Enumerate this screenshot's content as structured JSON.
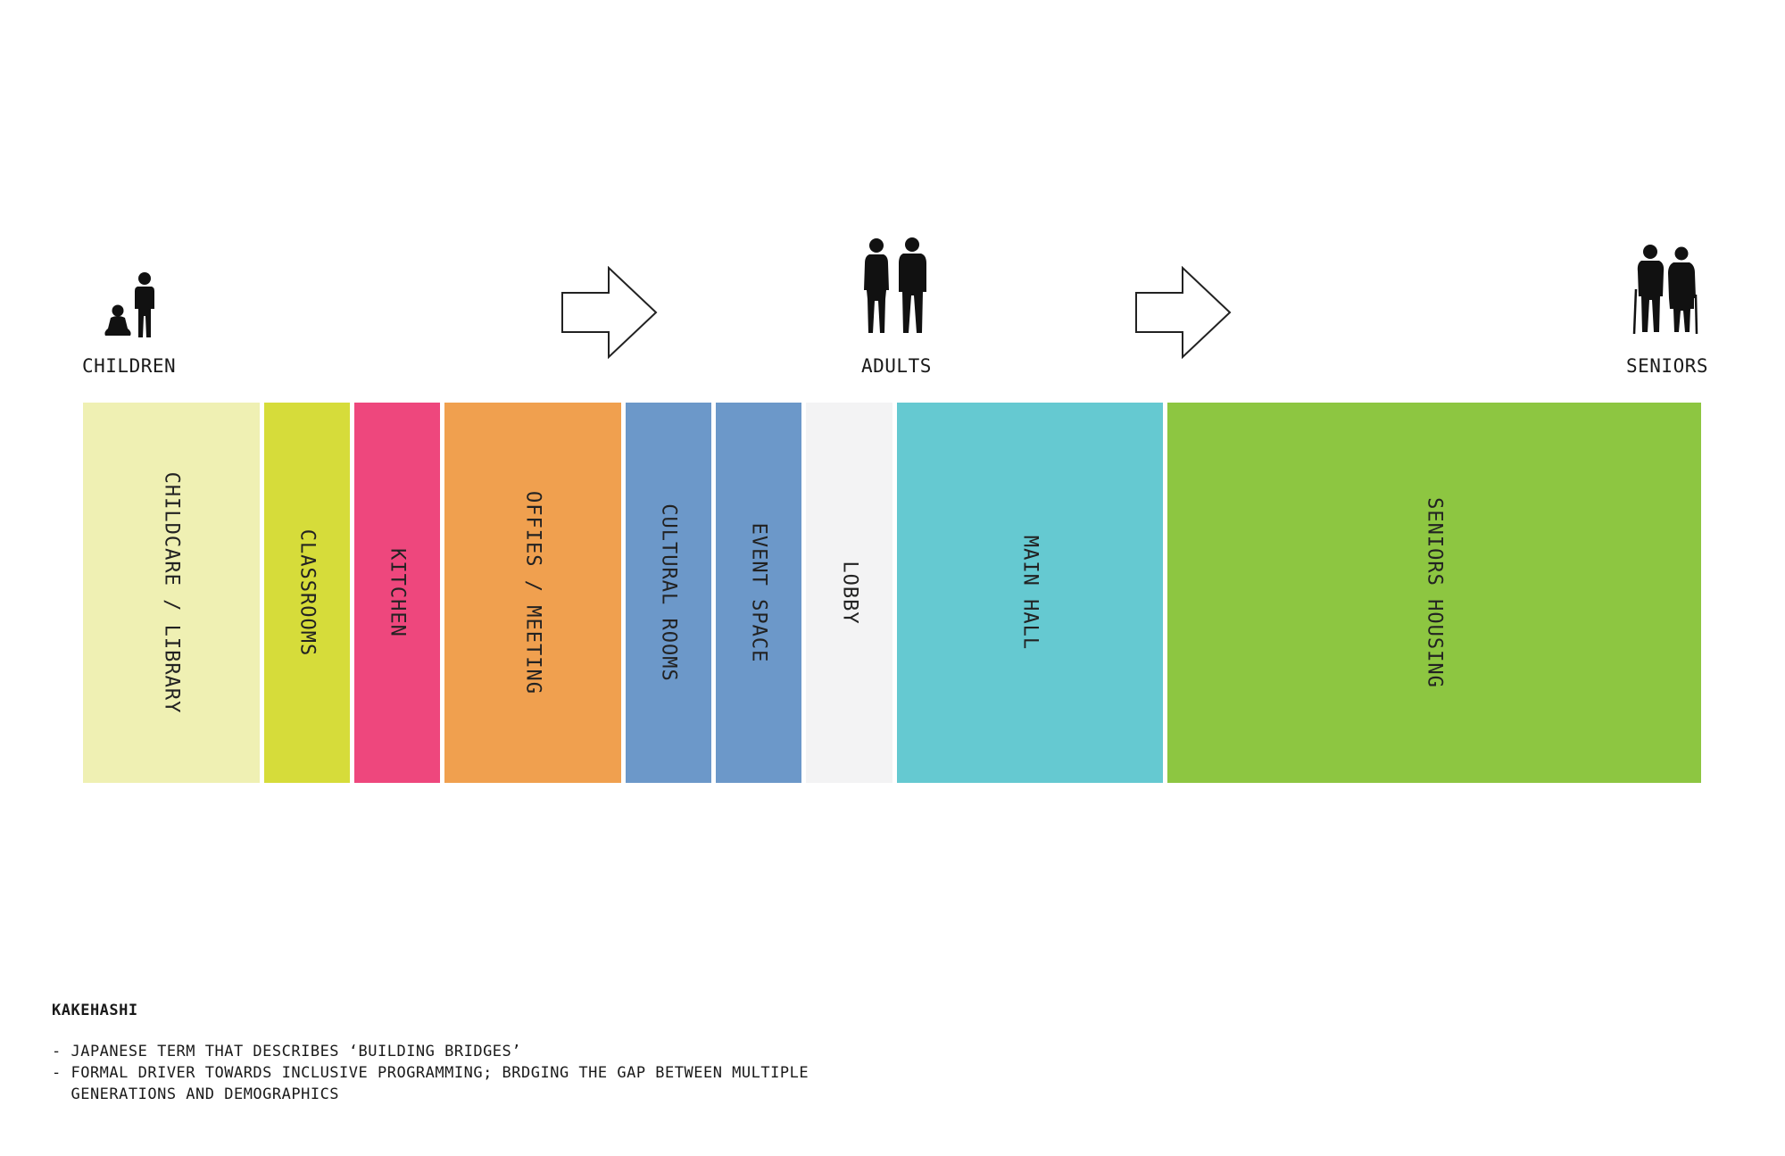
{
  "groups": {
    "children": "CHILDREN",
    "adults": "ADULTS",
    "seniors": "SENIORS"
  },
  "programs": [
    {
      "label": "CHILDCARE / LIBRARY",
      "color": "#eff0b3"
    },
    {
      "label": "CLASSROOMS",
      "color": "#d6dc3a"
    },
    {
      "label": "KITCHEN",
      "color": "#ee477d"
    },
    {
      "label": "OFFIES / MEETING",
      "color": "#f0a04f"
    },
    {
      "label": "CULTURAL ROOMS",
      "color": "#6c98c9"
    },
    {
      "label": "EVENT SPACE",
      "color": "#6c98c9"
    },
    {
      "label": "LOBBY",
      "color": "#f3f3f4"
    },
    {
      "label": "MAIN HALL",
      "color": "#65c9d1"
    },
    {
      "label": "SENIORS HOUSING",
      "color": "#8dc641"
    }
  ],
  "note": {
    "title": "KAKEHASHI",
    "lines": [
      "- JAPANESE TERM THAT DESCRIBES ‘BUILDING BRIDGES’",
      "- FORMAL DRIVER TOWARDS INCLUSIVE PROGRAMMING; BRDGING THE GAP BETWEEN MULTIPLE",
      "  GENERATIONS AND DEMOGRAPHICS"
    ]
  },
  "icons": {
    "children": "children-figures-icon",
    "adults": "adult-figures-icon",
    "seniors": "senior-figures-icon",
    "arrow": "right-arrow-icon"
  }
}
